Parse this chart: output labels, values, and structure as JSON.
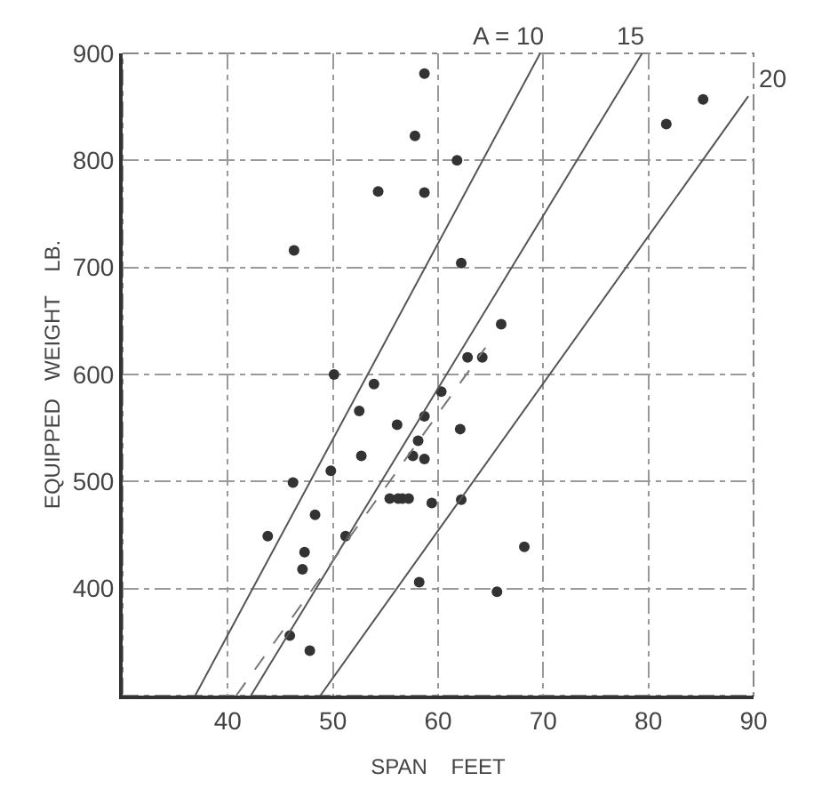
{
  "chart_data": {
    "type": "scatter",
    "xlabel": "SPAN    FEET",
    "ylabel": "EQUIPPED   WEIGHT    LB.",
    "xlim": [
      30,
      90
    ],
    "ylim": [
      300,
      900
    ],
    "xticks": [
      40,
      50,
      60,
      70,
      80,
      90
    ],
    "yticks": [
      400,
      500,
      600,
      700,
      800,
      900
    ],
    "grid": true,
    "marker": "circle",
    "series": [
      {
        "color": "#333333",
        "x": [
          58.7,
          57.8,
          61.8,
          54.3,
          58.7,
          46.3,
          62.2,
          66.0,
          62.8,
          64.2,
          50.1,
          53.9,
          60.3,
          52.5,
          56.1,
          58.7,
          62.1,
          58.1,
          52.7,
          57.6,
          58.7,
          49.8,
          46.2,
          55.4,
          56.2,
          56.6,
          57.2,
          59.4,
          62.2,
          48.3,
          43.8,
          51.2,
          68.2,
          47.3,
          47.1,
          58.2,
          65.6,
          45.9,
          47.8,
          85.2,
          81.7
        ],
        "values": [
          881,
          823,
          800,
          771,
          770,
          716,
          704,
          647,
          616,
          616,
          600,
          591,
          584,
          566,
          553,
          561,
          549,
          538,
          524,
          524,
          521,
          510,
          499,
          484,
          484,
          484,
          484,
          480,
          483,
          469,
          449,
          449,
          439,
          434,
          418,
          406,
          397,
          356,
          342,
          857,
          834
        ]
      },
      {
        "type": "line",
        "color": "#555555",
        "line_style": "solid",
        "marker": "none",
        "x": [
          36.9,
          69.7
        ],
        "values": [
          300,
          900
        ]
      },
      {
        "type": "line",
        "color": "#555555",
        "line_style": "solid",
        "marker": "none",
        "x": [
          42.2,
          79.4
        ],
        "values": [
          300,
          900
        ]
      },
      {
        "type": "line",
        "color": "#555555",
        "line_style": "solid",
        "marker": "none",
        "x": [
          48.8,
          89.5
        ],
        "values": [
          300,
          860
        ]
      },
      {
        "type": "line",
        "color": "#777777",
        "line_style": "dashed",
        "marker": "none",
        "x": [
          40.8,
          64.5
        ],
        "values": [
          300,
          625
        ]
      }
    ],
    "annotations": [
      {
        "text": "A = 10",
        "x": 69.7,
        "y": 900
      },
      {
        "text": "15",
        "x": 79.4,
        "y": 900
      },
      {
        "text": "20",
        "x": 89.5,
        "y": 860
      }
    ]
  }
}
